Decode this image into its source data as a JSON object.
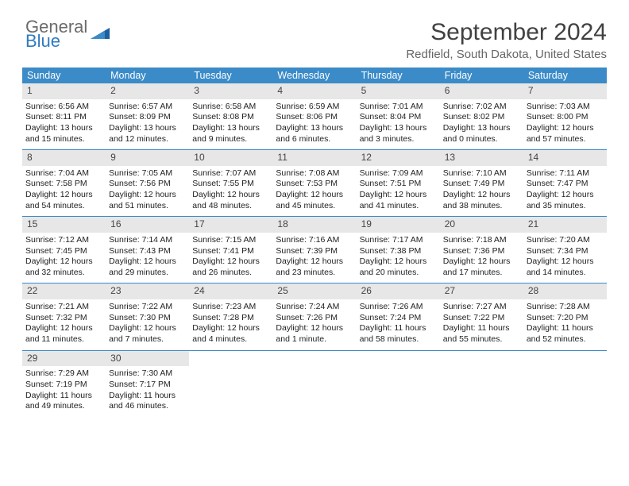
{
  "brand": {
    "name_top": "General",
    "name_bottom": "Blue",
    "tri_color": "#1e5fa0"
  },
  "title": "September 2024",
  "location": "Redfield, South Dakota, United States",
  "header_color": "#3b8bc8",
  "weekdays": [
    "Sunday",
    "Monday",
    "Tuesday",
    "Wednesday",
    "Thursday",
    "Friday",
    "Saturday"
  ],
  "cell_bg": "#e7e7e7",
  "font_family": "Arial, Helvetica, sans-serif",
  "font_size_body": 10.5,
  "weeks": [
    [
      {
        "n": "1",
        "sunrise": "6:56 AM",
        "sunset": "8:11 PM",
        "daylight": "13 hours and 15 minutes."
      },
      {
        "n": "2",
        "sunrise": "6:57 AM",
        "sunset": "8:09 PM",
        "daylight": "13 hours and 12 minutes."
      },
      {
        "n": "3",
        "sunrise": "6:58 AM",
        "sunset": "8:08 PM",
        "daylight": "13 hours and 9 minutes."
      },
      {
        "n": "4",
        "sunrise": "6:59 AM",
        "sunset": "8:06 PM",
        "daylight": "13 hours and 6 minutes."
      },
      {
        "n": "5",
        "sunrise": "7:01 AM",
        "sunset": "8:04 PM",
        "daylight": "13 hours and 3 minutes."
      },
      {
        "n": "6",
        "sunrise": "7:02 AM",
        "sunset": "8:02 PM",
        "daylight": "13 hours and 0 minutes."
      },
      {
        "n": "7",
        "sunrise": "7:03 AM",
        "sunset": "8:00 PM",
        "daylight": "12 hours and 57 minutes."
      }
    ],
    [
      {
        "n": "8",
        "sunrise": "7:04 AM",
        "sunset": "7:58 PM",
        "daylight": "12 hours and 54 minutes."
      },
      {
        "n": "9",
        "sunrise": "7:05 AM",
        "sunset": "7:56 PM",
        "daylight": "12 hours and 51 minutes."
      },
      {
        "n": "10",
        "sunrise": "7:07 AM",
        "sunset": "7:55 PM",
        "daylight": "12 hours and 48 minutes."
      },
      {
        "n": "11",
        "sunrise": "7:08 AM",
        "sunset": "7:53 PM",
        "daylight": "12 hours and 45 minutes."
      },
      {
        "n": "12",
        "sunrise": "7:09 AM",
        "sunset": "7:51 PM",
        "daylight": "12 hours and 41 minutes."
      },
      {
        "n": "13",
        "sunrise": "7:10 AM",
        "sunset": "7:49 PM",
        "daylight": "12 hours and 38 minutes."
      },
      {
        "n": "14",
        "sunrise": "7:11 AM",
        "sunset": "7:47 PM",
        "daylight": "12 hours and 35 minutes."
      }
    ],
    [
      {
        "n": "15",
        "sunrise": "7:12 AM",
        "sunset": "7:45 PM",
        "daylight": "12 hours and 32 minutes."
      },
      {
        "n": "16",
        "sunrise": "7:14 AM",
        "sunset": "7:43 PM",
        "daylight": "12 hours and 29 minutes."
      },
      {
        "n": "17",
        "sunrise": "7:15 AM",
        "sunset": "7:41 PM",
        "daylight": "12 hours and 26 minutes."
      },
      {
        "n": "18",
        "sunrise": "7:16 AM",
        "sunset": "7:39 PM",
        "daylight": "12 hours and 23 minutes."
      },
      {
        "n": "19",
        "sunrise": "7:17 AM",
        "sunset": "7:38 PM",
        "daylight": "12 hours and 20 minutes."
      },
      {
        "n": "20",
        "sunrise": "7:18 AM",
        "sunset": "7:36 PM",
        "daylight": "12 hours and 17 minutes."
      },
      {
        "n": "21",
        "sunrise": "7:20 AM",
        "sunset": "7:34 PM",
        "daylight": "12 hours and 14 minutes."
      }
    ],
    [
      {
        "n": "22",
        "sunrise": "7:21 AM",
        "sunset": "7:32 PM",
        "daylight": "12 hours and 11 minutes."
      },
      {
        "n": "23",
        "sunrise": "7:22 AM",
        "sunset": "7:30 PM",
        "daylight": "12 hours and 7 minutes."
      },
      {
        "n": "24",
        "sunrise": "7:23 AM",
        "sunset": "7:28 PM",
        "daylight": "12 hours and 4 minutes."
      },
      {
        "n": "25",
        "sunrise": "7:24 AM",
        "sunset": "7:26 PM",
        "daylight": "12 hours and 1 minute."
      },
      {
        "n": "26",
        "sunrise": "7:26 AM",
        "sunset": "7:24 PM",
        "daylight": "11 hours and 58 minutes."
      },
      {
        "n": "27",
        "sunrise": "7:27 AM",
        "sunset": "7:22 PM",
        "daylight": "11 hours and 55 minutes."
      },
      {
        "n": "28",
        "sunrise": "7:28 AM",
        "sunset": "7:20 PM",
        "daylight": "11 hours and 52 minutes."
      }
    ],
    [
      {
        "n": "29",
        "sunrise": "7:29 AM",
        "sunset": "7:19 PM",
        "daylight": "11 hours and 49 minutes."
      },
      {
        "n": "30",
        "sunrise": "7:30 AM",
        "sunset": "7:17 PM",
        "daylight": "11 hours and 46 minutes."
      },
      null,
      null,
      null,
      null,
      null
    ]
  ],
  "labels": {
    "sunrise": "Sunrise:",
    "sunset": "Sunset:",
    "daylight": "Daylight:"
  }
}
